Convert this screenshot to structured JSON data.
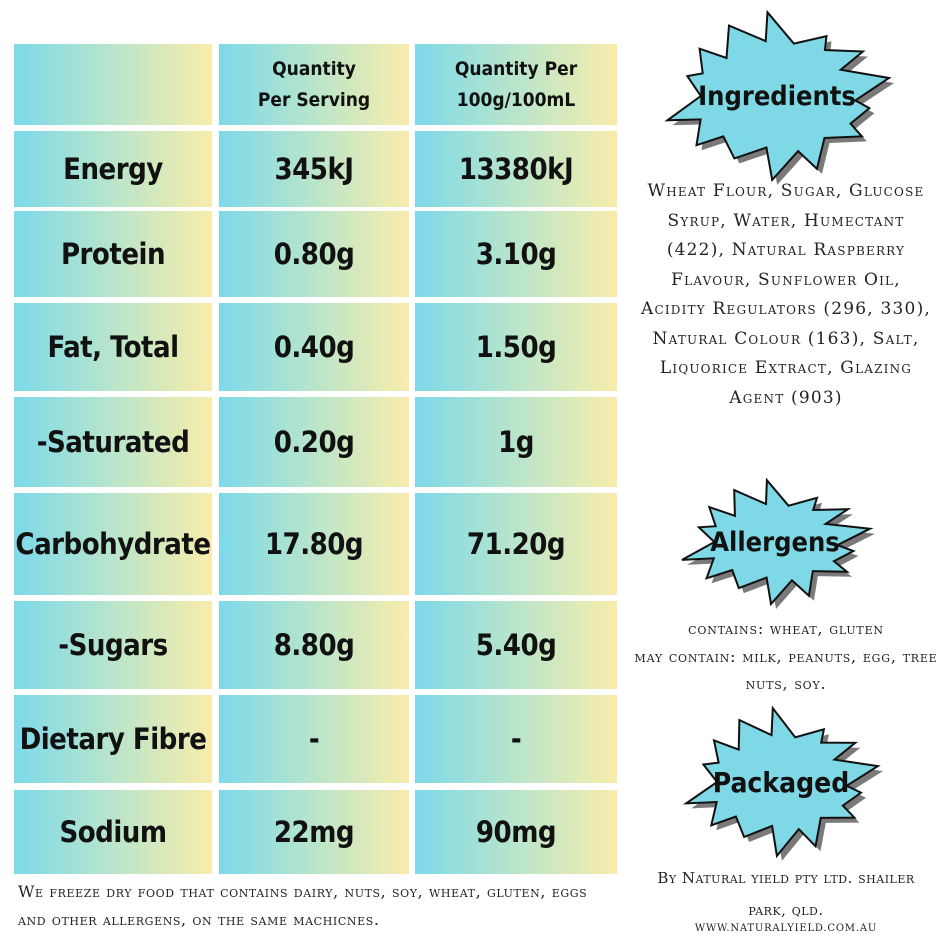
{
  "table": {
    "headers": [
      "",
      "Quantity Per Serving",
      "Quantity Per 100g/100mL"
    ],
    "rows": [
      {
        "label": "Energy",
        "serving": "345kJ",
        "per100": "13380kJ"
      },
      {
        "label": "Protein",
        "serving": "0.80g",
        "per100": "3.10g"
      },
      {
        "label": "Fat, Total",
        "serving": "0.40g",
        "per100": "1.50g"
      },
      {
        "label": "-Saturated",
        "serving": "0.20g",
        "per100": "1g"
      },
      {
        "label": "Carbohydrate",
        "serving": "17.80g",
        "per100": "71.20g"
      },
      {
        "label": "-Sugars",
        "serving": "8.80g",
        "per100": "5.40g"
      },
      {
        "label": "Dietary Fibre",
        "serving": "-",
        "per100": "-"
      },
      {
        "label": "Sodium",
        "serving": "22mg",
        "per100": "90mg"
      }
    ]
  },
  "ingredients": {
    "title": "Ingredients",
    "text": "Wheat Flour, Sugar, Glucose Syrup, Water, Humectant (422), Natural Raspberry Flavour, Sunflower Oil, Acidity Regulators (296, 330), Natural Colour (163), Salt, Liquorice Extract, Glazing Agent (903)"
  },
  "allergens": {
    "title": "Allergens",
    "line1": "contains: wheat, gluten",
    "line2": "may contain: milk, peanuts, egg, tree nuts, soy."
  },
  "packaged": {
    "title": "Packaged",
    "text": "By Natural yield pty ltd.  shailer park, qld.",
    "website": "WWW.NATURALYIELD.COM.AU"
  },
  "footer_note": "We freeze dry food that contains dairy, nuts, soy, wheat, gluten, eggs and other allergens, on the same machicnes.",
  "colors": {
    "cell_gradient_start": "#7dd9ea",
    "cell_gradient_end": "#f9ecab",
    "burst_fill": "#7fd8e6",
    "burst_shadow": "#7a7a7a"
  }
}
